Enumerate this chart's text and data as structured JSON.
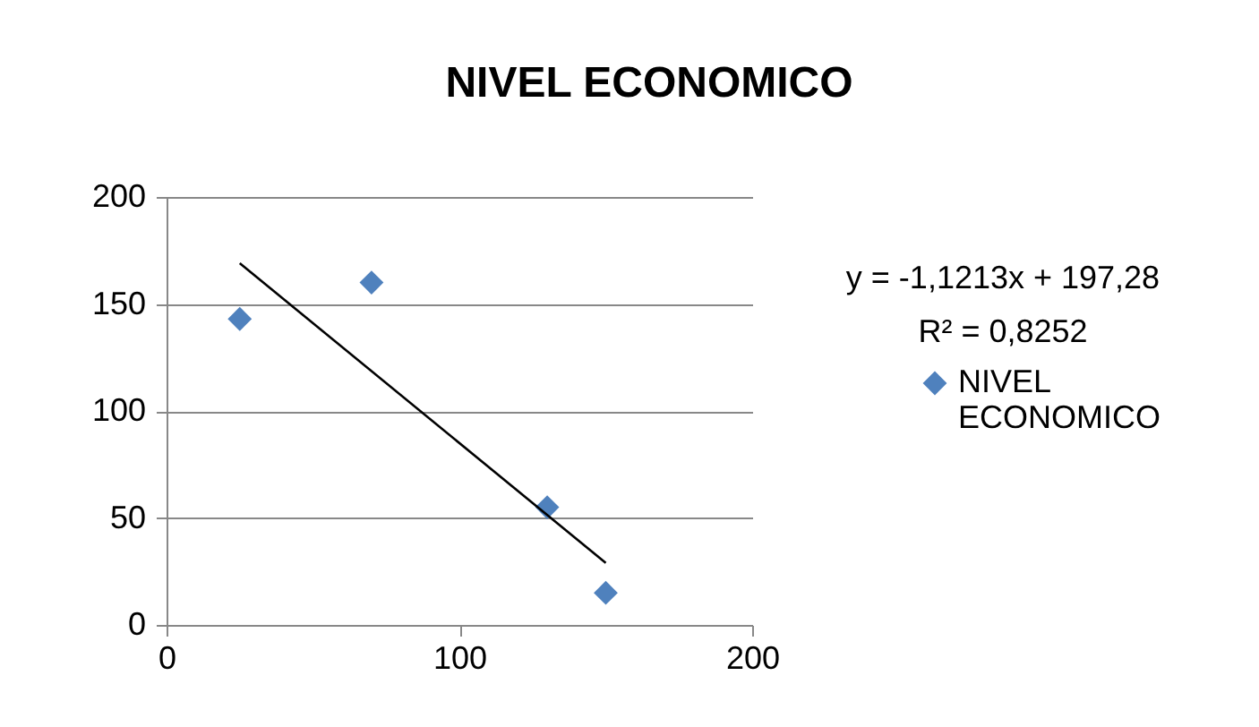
{
  "chart_data": {
    "type": "scatter",
    "title": "NIVEL ECONOMICO",
    "series": [
      {
        "name": "NIVEL ECONOMICO",
        "color": "#4f81bd",
        "x": [
          25,
          70,
          130,
          150
        ],
        "values": [
          143,
          160,
          55,
          15
        ]
      },
      {
        "type": "line",
        "color": "#000000",
        "marker": "none",
        "x": [
          25,
          150
        ],
        "values": [
          169,
          29
        ]
      }
    ],
    "annotations": [
      "y = -1,1213x + 197,28",
      "R² = 0,8252"
    ],
    "xlim": [
      0,
      200
    ],
    "xticks": [
      0,
      100,
      200
    ],
    "ylim": [
      0,
      200
    ],
    "yticks": [
      0,
      50,
      100,
      150,
      200
    ],
    "grid": "y",
    "legend": "right",
    "marker": "diamond"
  }
}
